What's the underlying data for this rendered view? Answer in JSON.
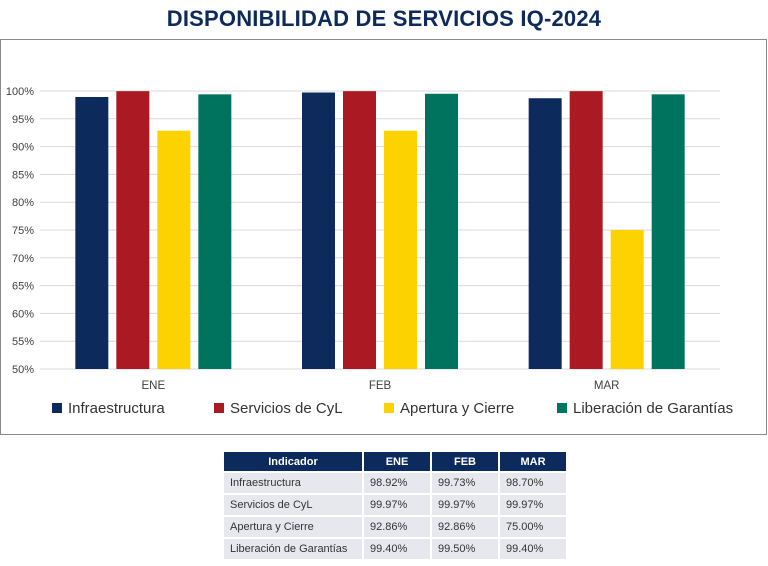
{
  "title": "DISPONIBILIDAD DE SERVICIOS IQ-2024",
  "chart_data": {
    "type": "bar",
    "categories": [
      "ENE",
      "FEB",
      "MAR"
    ],
    "series": [
      {
        "name": "Infraestructura",
        "color": "#0d2a5c",
        "values": [
          98.92,
          99.73,
          98.7
        ]
      },
      {
        "name": "Servicios de CyL",
        "color": "#ab1a23",
        "values": [
          99.97,
          99.97,
          99.97
        ]
      },
      {
        "name": "Apertura y Cierre",
        "color": "#fcd200",
        "values": [
          92.86,
          92.86,
          75.0
        ]
      },
      {
        "name": "Liberación de Garantías",
        "color": "#00735e",
        "values": [
          99.4,
          99.5,
          99.4
        ]
      }
    ],
    "ylim": [
      50,
      100
    ],
    "yticks": [
      "50%",
      "55%",
      "60%",
      "65%",
      "70%",
      "75%",
      "80%",
      "85%",
      "90%",
      "95%",
      "100%"
    ],
    "grid": true,
    "legend": "bottom"
  },
  "table": {
    "headers": [
      "Indicador",
      "ENE",
      "FEB",
      "MAR"
    ],
    "rows": [
      [
        "Infraestructura",
        "98.92%",
        "99.73%",
        "98.70%"
      ],
      [
        "Servicios de CyL",
        "99.97%",
        "99.97%",
        "99.97%"
      ],
      [
        "Apertura y Cierre",
        "92.86%",
        "92.86%",
        "75.00%"
      ],
      [
        "Liberación de Garantías",
        "99.40%",
        "99.50%",
        "99.40%"
      ]
    ]
  }
}
